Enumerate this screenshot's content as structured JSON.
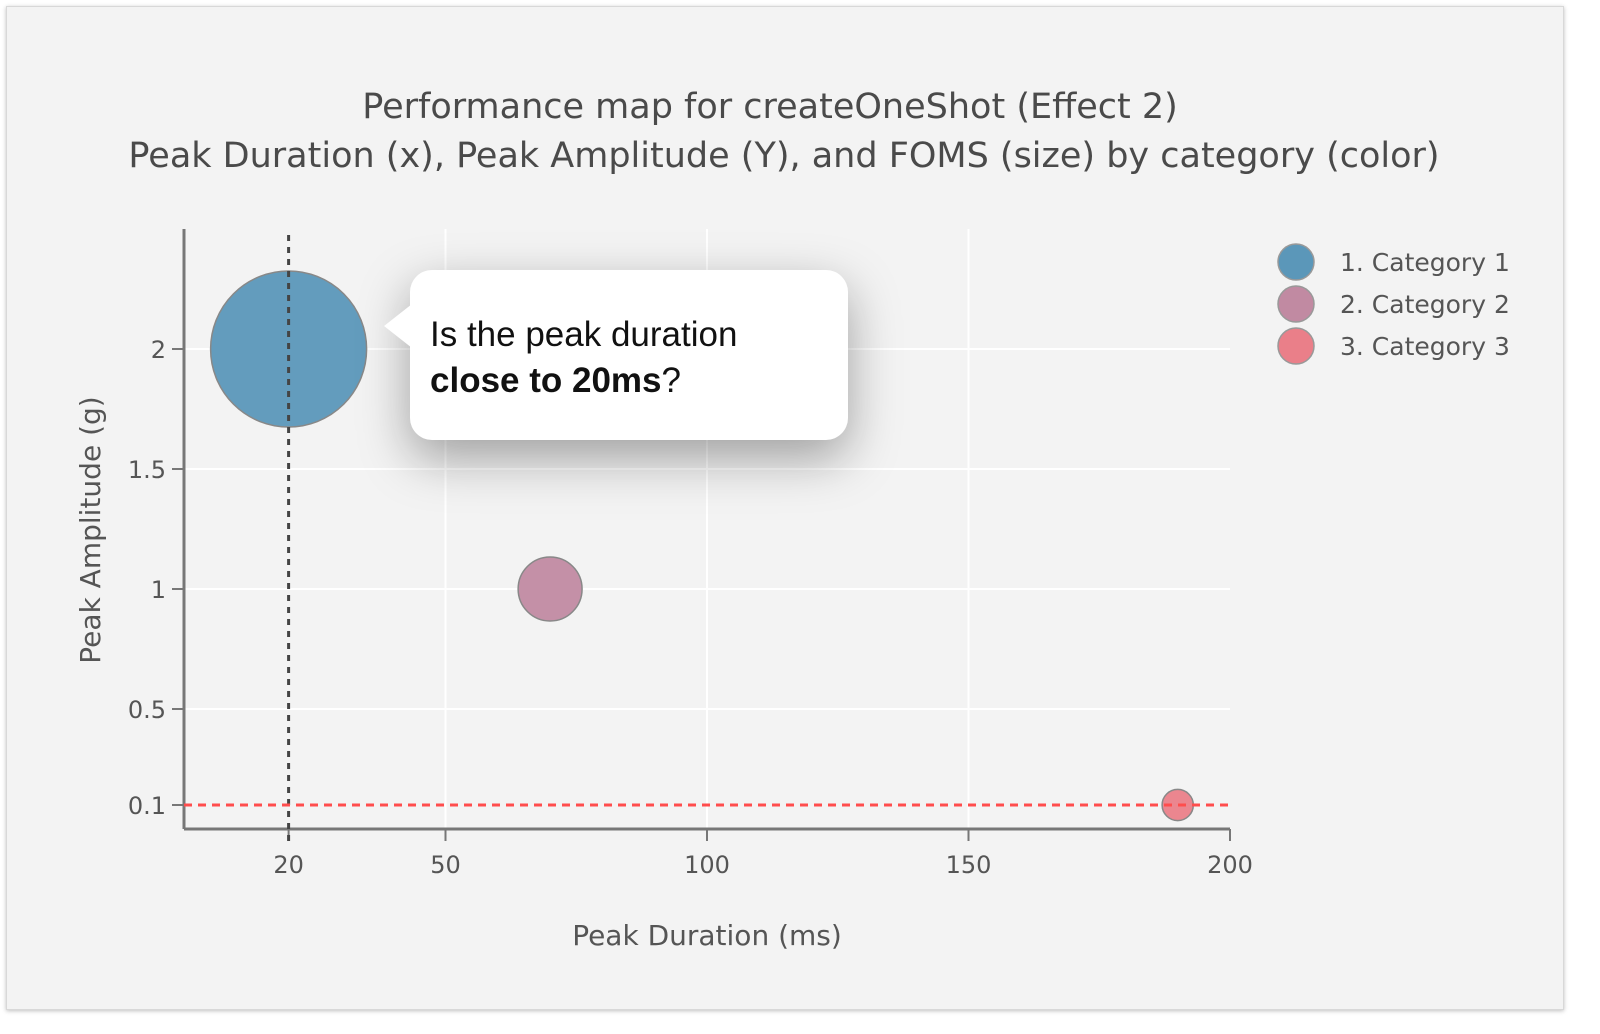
{
  "chart_data": {
    "type": "scatter",
    "title": "Performance map for createOneShot (Effect 2)",
    "subtitle": "Peak Duration (x), Peak Amplitude (Y), and FOMS (size) by category (color)",
    "xlabel": "Peak Duration (ms)",
    "ylabel": "Peak Amplitude (g)",
    "xlim": [
      0,
      200
    ],
    "ylim": [
      0,
      2.5
    ],
    "xticks": [
      20,
      50,
      100,
      150,
      200
    ],
    "yticks": [
      0.1,
      0.5,
      1,
      1.5,
      2
    ],
    "xtick_labels": [
      "20",
      "50",
      "100",
      "150",
      "200"
    ],
    "ytick_labels": [
      "0.1",
      "0.5",
      "1",
      "1.5",
      "2"
    ],
    "grid": true,
    "legend_position": "top-right",
    "series": [
      {
        "name": "1. Category 1",
        "x": 20,
        "y": 2,
        "relative_size": 1.0,
        "color": "#5b97b9"
      },
      {
        "name": "2. Category 2",
        "x": 70,
        "y": 1,
        "relative_size": 0.41,
        "color": "#c18aa2"
      },
      {
        "name": "3. Category 3",
        "x": 190,
        "y": 0.1,
        "relative_size": 0.2,
        "color": "#ea7f89"
      }
    ],
    "reference_lines": [
      {
        "axis": "x",
        "value": 20,
        "style": "dotted",
        "color": "#444444"
      },
      {
        "axis": "y",
        "value": 0.1,
        "style": "dashed",
        "color": "#ff4d4d"
      }
    ]
  },
  "callout": {
    "text_before": "Is the peak duration",
    "text_bold": "close to 20ms",
    "text_after": "?"
  }
}
